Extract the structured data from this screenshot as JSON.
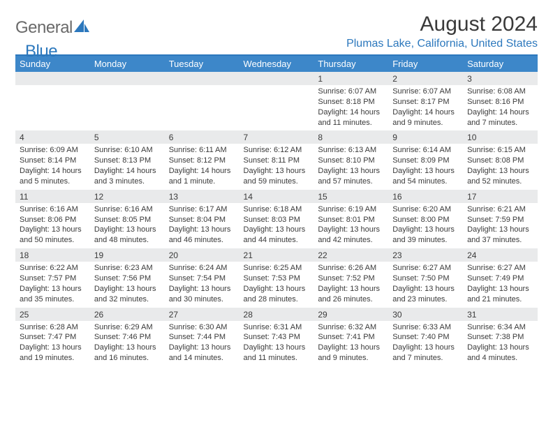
{
  "logo": {
    "general": "General",
    "blue": "Blue"
  },
  "title": {
    "month": "August 2024",
    "location": "Plumas Lake, California, United States"
  },
  "colors": {
    "header_bg": "#3d87c9",
    "header_text": "#ffffff",
    "accent_rule": "#2c78bd",
    "daynum_bg": "#e9eaeb",
    "body_bg": "#ffffff",
    "text": "#3a3a3a",
    "logo_gray": "#6a6a6a",
    "logo_blue": "#2c78bd"
  },
  "dayNames": [
    "Sunday",
    "Monday",
    "Tuesday",
    "Wednesday",
    "Thursday",
    "Friday",
    "Saturday"
  ],
  "weeks": [
    [
      null,
      null,
      null,
      null,
      {
        "n": "1",
        "sr": "6:07 AM",
        "ss": "8:18 PM",
        "dl": "14 hours and 11 minutes."
      },
      {
        "n": "2",
        "sr": "6:07 AM",
        "ss": "8:17 PM",
        "dl": "14 hours and 9 minutes."
      },
      {
        "n": "3",
        "sr": "6:08 AM",
        "ss": "8:16 PM",
        "dl": "14 hours and 7 minutes."
      }
    ],
    [
      {
        "n": "4",
        "sr": "6:09 AM",
        "ss": "8:14 PM",
        "dl": "14 hours and 5 minutes."
      },
      {
        "n": "5",
        "sr": "6:10 AM",
        "ss": "8:13 PM",
        "dl": "14 hours and 3 minutes."
      },
      {
        "n": "6",
        "sr": "6:11 AM",
        "ss": "8:12 PM",
        "dl": "14 hours and 1 minute."
      },
      {
        "n": "7",
        "sr": "6:12 AM",
        "ss": "8:11 PM",
        "dl": "13 hours and 59 minutes."
      },
      {
        "n": "8",
        "sr": "6:13 AM",
        "ss": "8:10 PM",
        "dl": "13 hours and 57 minutes."
      },
      {
        "n": "9",
        "sr": "6:14 AM",
        "ss": "8:09 PM",
        "dl": "13 hours and 54 minutes."
      },
      {
        "n": "10",
        "sr": "6:15 AM",
        "ss": "8:08 PM",
        "dl": "13 hours and 52 minutes."
      }
    ],
    [
      {
        "n": "11",
        "sr": "6:16 AM",
        "ss": "8:06 PM",
        "dl": "13 hours and 50 minutes."
      },
      {
        "n": "12",
        "sr": "6:16 AM",
        "ss": "8:05 PM",
        "dl": "13 hours and 48 minutes."
      },
      {
        "n": "13",
        "sr": "6:17 AM",
        "ss": "8:04 PM",
        "dl": "13 hours and 46 minutes."
      },
      {
        "n": "14",
        "sr": "6:18 AM",
        "ss": "8:03 PM",
        "dl": "13 hours and 44 minutes."
      },
      {
        "n": "15",
        "sr": "6:19 AM",
        "ss": "8:01 PM",
        "dl": "13 hours and 42 minutes."
      },
      {
        "n": "16",
        "sr": "6:20 AM",
        "ss": "8:00 PM",
        "dl": "13 hours and 39 minutes."
      },
      {
        "n": "17",
        "sr": "6:21 AM",
        "ss": "7:59 PM",
        "dl": "13 hours and 37 minutes."
      }
    ],
    [
      {
        "n": "18",
        "sr": "6:22 AM",
        "ss": "7:57 PM",
        "dl": "13 hours and 35 minutes."
      },
      {
        "n": "19",
        "sr": "6:23 AM",
        "ss": "7:56 PM",
        "dl": "13 hours and 32 minutes."
      },
      {
        "n": "20",
        "sr": "6:24 AM",
        "ss": "7:54 PM",
        "dl": "13 hours and 30 minutes."
      },
      {
        "n": "21",
        "sr": "6:25 AM",
        "ss": "7:53 PM",
        "dl": "13 hours and 28 minutes."
      },
      {
        "n": "22",
        "sr": "6:26 AM",
        "ss": "7:52 PM",
        "dl": "13 hours and 26 minutes."
      },
      {
        "n": "23",
        "sr": "6:27 AM",
        "ss": "7:50 PM",
        "dl": "13 hours and 23 minutes."
      },
      {
        "n": "24",
        "sr": "6:27 AM",
        "ss": "7:49 PM",
        "dl": "13 hours and 21 minutes."
      }
    ],
    [
      {
        "n": "25",
        "sr": "6:28 AM",
        "ss": "7:47 PM",
        "dl": "13 hours and 19 minutes."
      },
      {
        "n": "26",
        "sr": "6:29 AM",
        "ss": "7:46 PM",
        "dl": "13 hours and 16 minutes."
      },
      {
        "n": "27",
        "sr": "6:30 AM",
        "ss": "7:44 PM",
        "dl": "13 hours and 14 minutes."
      },
      {
        "n": "28",
        "sr": "6:31 AM",
        "ss": "7:43 PM",
        "dl": "13 hours and 11 minutes."
      },
      {
        "n": "29",
        "sr": "6:32 AM",
        "ss": "7:41 PM",
        "dl": "13 hours and 9 minutes."
      },
      {
        "n": "30",
        "sr": "6:33 AM",
        "ss": "7:40 PM",
        "dl": "13 hours and 7 minutes."
      },
      {
        "n": "31",
        "sr": "6:34 AM",
        "ss": "7:38 PM",
        "dl": "13 hours and 4 minutes."
      }
    ]
  ],
  "labels": {
    "sunrise": "Sunrise:",
    "sunset": "Sunset:",
    "daylight": "Daylight:"
  }
}
